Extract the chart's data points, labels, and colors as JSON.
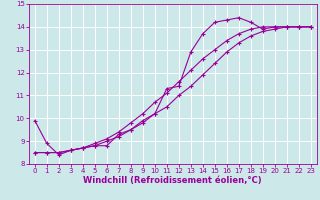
{
  "xlabel": "Windchill (Refroidissement éolien,°C)",
  "xlim": [
    -0.5,
    23.5
  ],
  "ylim": [
    8,
    15
  ],
  "xticks": [
    0,
    1,
    2,
    3,
    4,
    5,
    6,
    7,
    8,
    9,
    10,
    11,
    12,
    13,
    14,
    15,
    16,
    17,
    18,
    19,
    20,
    21,
    22,
    23
  ],
  "yticks": [
    8,
    9,
    10,
    11,
    12,
    13,
    14,
    15
  ],
  "bg_color": "#cce8e8",
  "grid_color": "#ffffff",
  "line_color": "#990099",
  "line1_x": [
    0,
    1,
    2,
    3,
    4,
    5,
    6,
    7,
    8,
    9,
    10,
    11,
    12,
    13,
    14,
    15,
    16,
    17,
    18,
    19,
    20,
    21,
    22,
    23
  ],
  "line1_y": [
    9.9,
    8.9,
    8.4,
    8.6,
    8.7,
    8.8,
    8.8,
    9.3,
    9.5,
    9.9,
    10.2,
    11.3,
    11.4,
    12.9,
    13.7,
    14.2,
    14.3,
    14.4,
    14.2,
    13.9,
    14.0,
    14.0,
    14.0,
    14.0
  ],
  "line2_x": [
    0,
    1,
    2,
    3,
    4,
    5,
    6,
    7,
    8,
    9,
    10,
    11,
    12,
    13,
    14,
    15,
    16,
    17,
    18,
    19,
    20,
    21,
    22,
    23
  ],
  "line2_y": [
    8.5,
    8.5,
    8.5,
    8.6,
    8.7,
    8.9,
    9.1,
    9.4,
    9.8,
    10.2,
    10.7,
    11.1,
    11.6,
    12.1,
    12.6,
    13.0,
    13.4,
    13.7,
    13.9,
    14.0,
    14.0,
    14.0,
    14.0,
    14.0
  ],
  "line3_x": [
    0,
    1,
    2,
    3,
    4,
    5,
    6,
    7,
    8,
    9,
    10,
    11,
    12,
    13,
    14,
    15,
    16,
    17,
    18,
    19,
    20,
    21,
    22,
    23
  ],
  "line3_y": [
    8.5,
    8.5,
    8.5,
    8.6,
    8.7,
    8.8,
    9.0,
    9.2,
    9.5,
    9.8,
    10.2,
    10.5,
    11.0,
    11.4,
    11.9,
    12.4,
    12.9,
    13.3,
    13.6,
    13.8,
    13.9,
    14.0,
    14.0,
    14.0
  ],
  "marker": "+",
  "markersize": 3,
  "linewidth": 0.8,
  "tick_fontsize": 5,
  "xlabel_fontsize": 6
}
